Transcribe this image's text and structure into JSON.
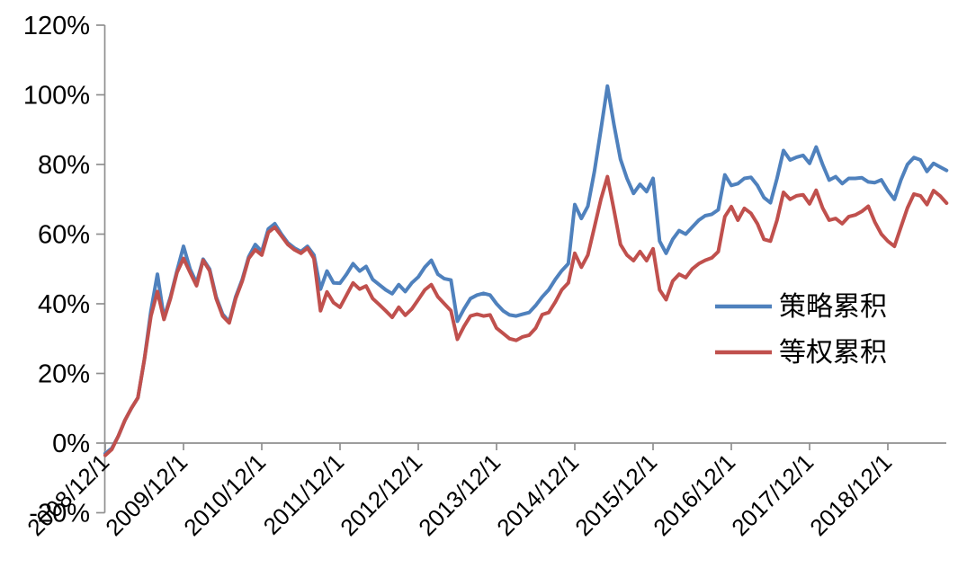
{
  "colors": {
    "background": "#ffffff",
    "axis": "#8f8f8f",
    "label_text": "#000000",
    "strategy_blue": "#4F81BD",
    "equal_weight_red": "#C0504D"
  },
  "legend": {
    "items": [
      {
        "label": "策略累积",
        "color": "#4F81BD"
      },
      {
        "label": "等权累积",
        "color": "#C0504D"
      }
    ]
  },
  "chart_data": {
    "type": "line",
    "title": "",
    "xlabel": "",
    "ylabel": "",
    "grid": false,
    "legend_position": "middle-right",
    "y_axis": {
      "min": -20,
      "max": 120,
      "step": 20,
      "unit": "%"
    },
    "y_tick_labels": [
      "-20%",
      "0%",
      "20%",
      "40%",
      "60%",
      "80%",
      "100%",
      "120%"
    ],
    "x_tick_labels": [
      "2008/12/1",
      "2009/12/1",
      "2010/12/1",
      "2011/12/1",
      "2012/12/1",
      "2013/12/1",
      "2014/12/1",
      "2015/12/1",
      "2016/12/1",
      "2017/12/1",
      "2018/12/1"
    ],
    "x_start": "2008/12/1",
    "x_frequency": "monthly",
    "x_months_per_tick": 12,
    "series": [
      {
        "name": "策略累积",
        "color": "#4F81BD",
        "values": [
          -3,
          -1.5,
          2,
          6.5,
          10,
          13,
          24,
          38,
          48.5,
          36,
          42,
          49.5,
          56.5,
          50,
          46,
          52.8,
          50,
          42,
          37,
          34.8,
          42,
          47,
          53.5,
          57,
          55,
          61.5,
          63,
          60,
          57.5,
          56,
          55,
          56.5,
          54,
          44.2,
          49.4,
          46,
          45.9,
          48.5,
          51.5,
          49.4,
          50.7,
          47,
          45.5,
          44,
          42.9,
          45.5,
          43.5,
          46,
          47.7,
          50.5,
          52.5,
          48.5,
          47.2,
          46.8,
          35,
          38.5,
          41.5,
          42.5,
          43,
          42.5,
          40,
          38,
          36.8,
          36.5,
          37,
          37.5,
          39.5,
          42,
          44,
          47,
          49.5,
          51.5,
          68.5,
          64.5,
          68,
          78,
          90,
          102.5,
          91.5,
          81.5,
          76,
          71.7,
          74.3,
          72.2,
          76,
          58,
          54.5,
          58.5,
          61,
          60,
          62,
          64,
          65.3,
          65.7,
          67,
          77,
          74,
          74.5,
          76,
          76.3,
          74,
          70.5,
          69,
          76,
          84,
          81.3,
          82.1,
          82.6,
          80.3,
          85,
          80,
          75.5,
          76.5,
          74.5,
          76,
          76,
          76.2,
          75,
          74.8,
          75.6,
          72.5,
          70,
          75.5,
          80,
          82,
          81.3,
          78,
          80.3,
          79.3,
          78.3
        ]
      },
      {
        "name": "等权累积",
        "color": "#C0504D",
        "values": [
          -3.5,
          -1.8,
          2,
          6.5,
          10,
          13,
          24,
          36.5,
          43.5,
          35.5,
          41.5,
          49,
          53,
          49,
          45.2,
          52.5,
          49.5,
          41.5,
          36.5,
          34.5,
          41.5,
          46.5,
          53,
          55.5,
          54,
          60.5,
          62,
          59.5,
          57,
          55.5,
          54.5,
          56,
          53,
          38,
          43.4,
          40.3,
          39,
          42.5,
          46,
          44.2,
          45.1,
          41.5,
          39.8,
          38,
          36.1,
          39,
          36.7,
          38.5,
          41.2,
          44,
          45.5,
          42,
          40,
          38,
          29.8,
          33.5,
          36.5,
          37,
          36.5,
          36.8,
          33,
          31.5,
          30,
          29.5,
          30.5,
          31,
          33,
          36.9,
          37.5,
          40.5,
          44,
          46,
          54.5,
          50.5,
          54,
          62,
          70,
          76.5,
          67,
          57,
          54,
          52.4,
          55,
          52.4,
          55.8,
          44,
          41.2,
          46.5,
          48.5,
          47.5,
          50,
          51.5,
          52.5,
          53.2,
          55,
          65,
          67.9,
          64,
          67.4,
          66,
          63,
          58.5,
          58,
          64,
          72,
          70,
          71,
          71.3,
          68.7,
          72.6,
          67.5,
          64,
          64.5,
          63,
          65,
          65.5,
          66.5,
          68,
          63.5,
          60,
          58,
          56.5,
          62,
          67.5,
          71.5,
          71,
          68.5,
          72.5,
          71,
          68.9
        ]
      }
    ]
  }
}
